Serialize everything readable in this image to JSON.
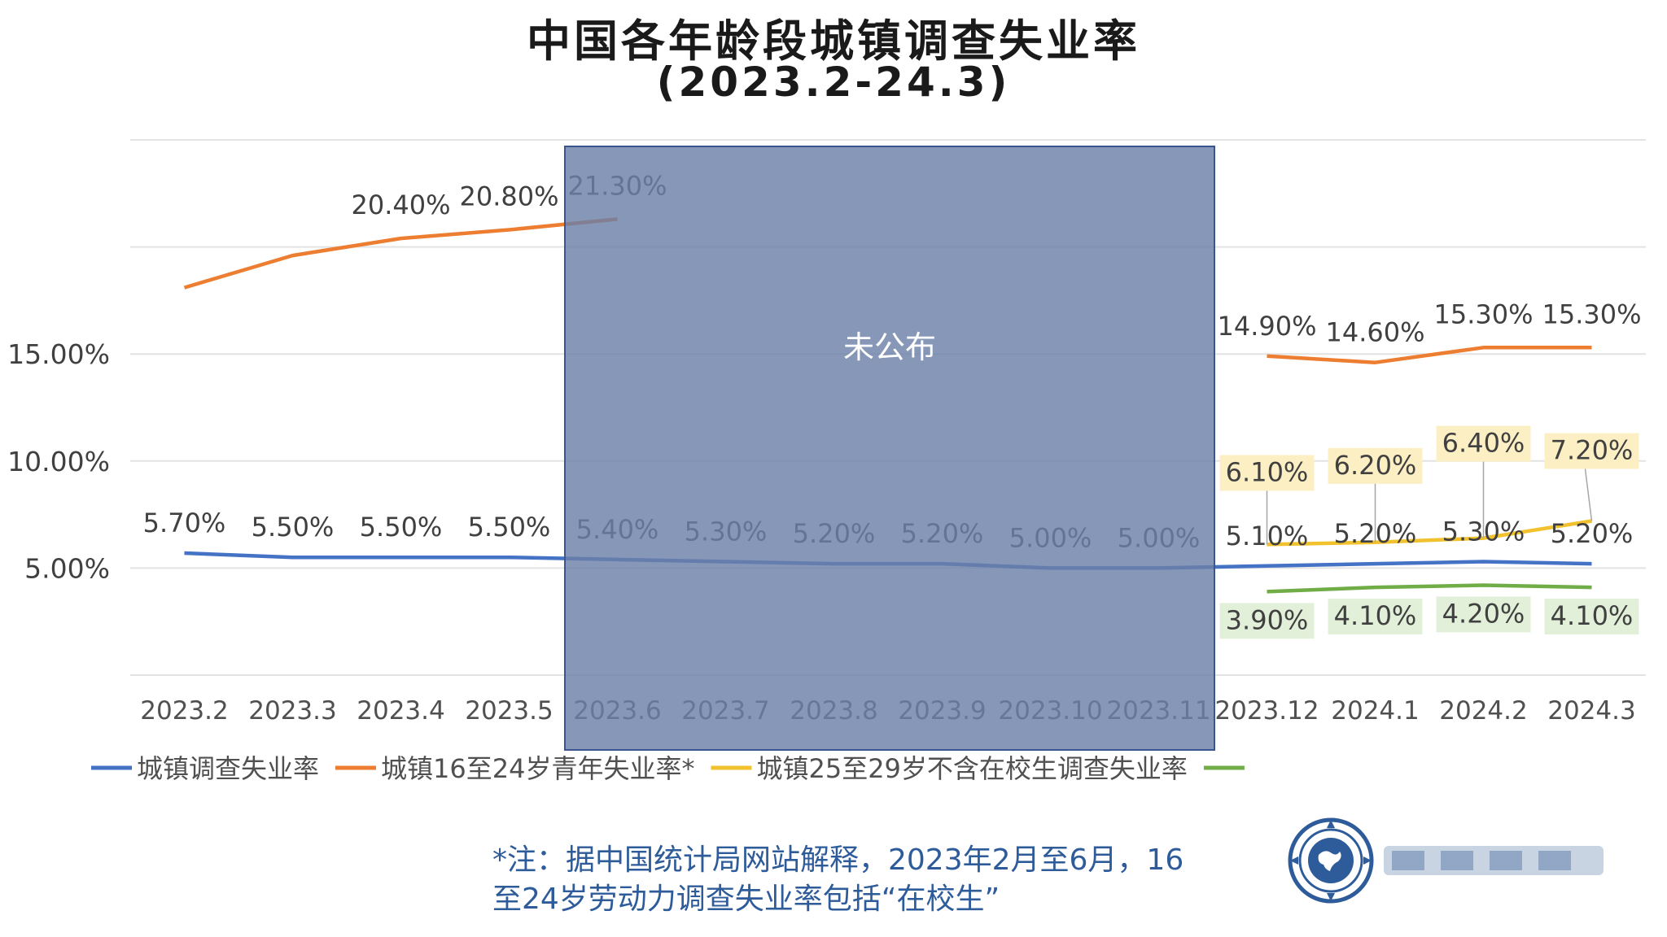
{
  "chart_data": {
    "type": "line",
    "title": "中国各年龄段城镇调查失业率",
    "subtitle": "(2023.2-24.3)",
    "categories": [
      "2023.2",
      "2023.3",
      "2023.4",
      "2023.5",
      "2023.6",
      "2023.7",
      "2023.8",
      "2023.9",
      "2023.10",
      "2023.11",
      "2023.12",
      "2024.1",
      "2024.2",
      "2024.3"
    ],
    "y_ticks": [
      "5.00%",
      "10.00%",
      "15.00%"
    ],
    "ylim": [
      0,
      25
    ],
    "grid": true,
    "legend_position": "bottom",
    "series": [
      {
        "name": "城镇调查失业率",
        "color": "#4472c4",
        "values": [
          5.7,
          5.5,
          5.5,
          5.5,
          5.4,
          5.3,
          5.2,
          5.2,
          5.0,
          5.0,
          5.1,
          5.2,
          5.3,
          5.2
        ],
        "labels": [
          "5.70%",
          "5.50%",
          "5.50%",
          "5.50%",
          "5.40%",
          "5.30%",
          "5.20%",
          "5.20%",
          "5.00%",
          "5.00%",
          "5.10%",
          "5.20%",
          "5.30%",
          "5.20%"
        ]
      },
      {
        "name": "城镇16至24岁青年失业率*",
        "color": "#ed7d31",
        "values": [
          18.1,
          19.6,
          20.4,
          20.8,
          21.3,
          null,
          null,
          null,
          null,
          null,
          14.9,
          14.6,
          15.3,
          15.3
        ],
        "labels": [
          "",
          "",
          "20.40%",
          "20.80%",
          "21.30%",
          "",
          "",
          "",
          "",
          "",
          "14.90%",
          "14.60%",
          "15.30%",
          "15.30%"
        ]
      },
      {
        "name": "城镇25至29岁不含在校生调查失业率",
        "color": "#f2c12e",
        "values": [
          null,
          null,
          null,
          null,
          null,
          null,
          null,
          null,
          null,
          null,
          6.1,
          6.2,
          6.4,
          7.2
        ],
        "labels": [
          "",
          "",
          "",
          "",
          "",
          "",
          "",
          "",
          "",
          "",
          "6.10%",
          "6.20%",
          "6.40%",
          "7.20%"
        ]
      },
      {
        "name": "",
        "color": "#70ad47",
        "values": [
          null,
          null,
          null,
          null,
          null,
          null,
          null,
          null,
          null,
          null,
          3.9,
          4.1,
          4.2,
          4.1
        ],
        "labels": [
          "",
          "",
          "",
          "",
          "",
          "",
          "",
          "",
          "",
          "",
          "3.90%",
          "4.10%",
          "4.20%",
          "4.10%"
        ]
      }
    ],
    "annotations": [
      {
        "text": "未公布",
        "from": "2023.6",
        "to": "2023.11",
        "color": "#6b80a8"
      }
    ]
  },
  "note": {
    "line1": "*注：据中国统计局网站解释，2023年2月至6月，16",
    "line2": "至24岁劳动力调查失业率包括“在校生”"
  }
}
